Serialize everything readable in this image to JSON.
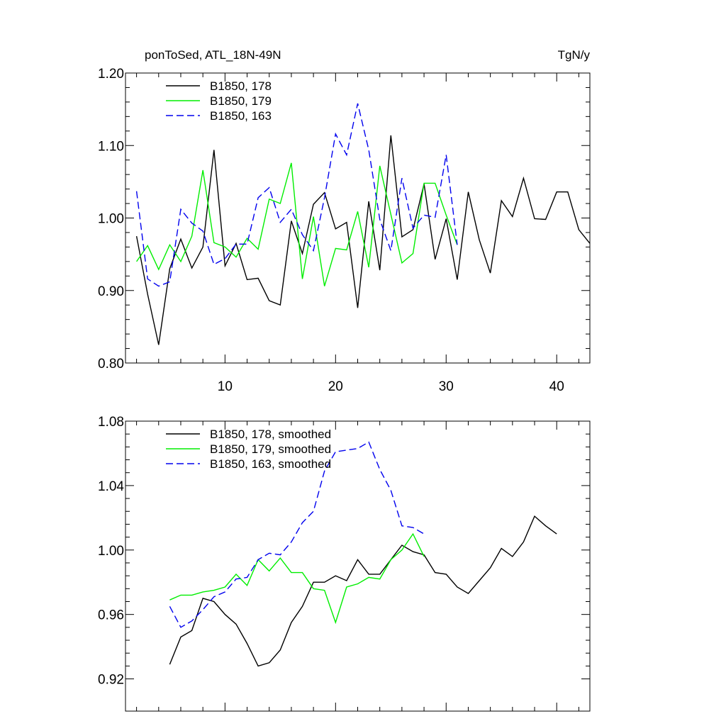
{
  "header": {
    "left_title": "ponToSed, ATL_18N-49N",
    "right_title": "TgN/y"
  },
  "chart_data": [
    {
      "type": "line",
      "title": "ponToSed, ATL_18N-49N",
      "units": "TgN/y",
      "xlim": [
        1,
        43
      ],
      "ylim": [
        0.8,
        1.2
      ],
      "xticks": [
        10,
        20,
        30,
        40
      ],
      "yticks": [
        0.8,
        0.9,
        1.0,
        1.1,
        1.2
      ],
      "ytick_labels": [
        "0.80",
        "0.90",
        "1.00",
        "1.10",
        "1.20"
      ],
      "grid": false,
      "legend_position": "top-left",
      "series": [
        {
          "name": "B1850, 178",
          "color": "#000000",
          "dash": "solid",
          "x": [
            2,
            3,
            4,
            5,
            6,
            7,
            8,
            9,
            10,
            11,
            12,
            13,
            14,
            15,
            16,
            17,
            18,
            19,
            20,
            21,
            22,
            23,
            24,
            25,
            26,
            27,
            28,
            29,
            30,
            31,
            32,
            33,
            34,
            35,
            36,
            37,
            38,
            39,
            40,
            41,
            42,
            43
          ],
          "y": [
            0.975,
            0.895,
            0.825,
            0.93,
            0.971,
            0.931,
            0.96,
            1.094,
            0.934,
            0.965,
            0.915,
            0.917,
            0.886,
            0.88,
            0.996,
            0.951,
            1.019,
            1.035,
            0.985,
            0.994,
            0.876,
            1.023,
            0.928,
            1.114,
            0.974,
            0.984,
            1.047,
            0.943,
            0.999,
            0.915,
            1.036,
            0.97,
            0.924,
            1.024,
            1.002,
            1.055,
            0.999,
            0.998,
            1.036,
            1.036,
            0.984,
            0.965
          ]
        },
        {
          "name": "B1850, 179",
          "color": "#00ee00",
          "dash": "solid",
          "x": [
            2,
            3,
            4,
            5,
            6,
            7,
            8,
            9,
            10,
            11,
            12,
            13,
            14,
            15,
            16,
            17,
            18,
            19,
            20,
            21,
            22,
            23,
            24,
            25,
            26,
            27,
            28,
            29,
            30,
            31
          ],
          "y": [
            0.94,
            0.962,
            0.929,
            0.963,
            0.94,
            0.975,
            1.066,
            0.966,
            0.96,
            0.946,
            0.972,
            0.957,
            1.026,
            1.02,
            1.076,
            0.916,
            1.002,
            0.906,
            0.958,
            0.956,
            1.009,
            0.932,
            1.072,
            1.005,
            0.938,
            0.951,
            1.048,
            1.048,
            1.004,
            0.963
          ]
        },
        {
          "name": "B1850, 163",
          "color": "#0000ee",
          "dash": "dashed",
          "x": [
            2,
            3,
            4,
            5,
            6,
            7,
            8,
            9,
            10,
            11,
            12,
            13,
            14,
            15,
            16,
            17,
            18,
            19,
            20,
            21,
            22,
            23,
            24,
            25,
            26,
            27,
            28,
            29,
            30,
            31
          ],
          "y": [
            1.037,
            0.916,
            0.906,
            0.912,
            1.012,
            0.993,
            0.982,
            0.936,
            0.944,
            0.964,
            0.964,
            1.028,
            1.042,
            0.994,
            1.012,
            0.977,
            0.955,
            1.028,
            1.116,
            1.087,
            1.158,
            1.094,
            0.998,
            0.955,
            1.055,
            0.986,
            1.004,
            1.001,
            1.087,
            0.963
          ]
        }
      ]
    },
    {
      "type": "line",
      "xlim": [
        1,
        43
      ],
      "ylim": [
        0.9,
        1.08
      ],
      "xticks": [
        10,
        20,
        30,
        40
      ],
      "yticks": [
        0.92,
        0.96,
        1.0,
        1.04,
        1.08
      ],
      "ytick_labels": [
        "0.92",
        "0.96",
        "1.00",
        "1.04",
        "1.08"
      ],
      "grid": false,
      "legend_position": "top-left",
      "series": [
        {
          "name": "B1850, 178, smoothed",
          "color": "#000000",
          "dash": "solid",
          "x": [
            5,
            6,
            7,
            8,
            9,
            10,
            11,
            12,
            13,
            14,
            15,
            16,
            17,
            18,
            19,
            20,
            21,
            22,
            23,
            24,
            25,
            26,
            27,
            28,
            29,
            30,
            31,
            32,
            33,
            34,
            35,
            36,
            37,
            38,
            39,
            40
          ],
          "y": [
            0.929,
            0.946,
            0.95,
            0.97,
            0.968,
            0.96,
            0.954,
            0.942,
            0.928,
            0.93,
            0.938,
            0.955,
            0.965,
            0.98,
            0.98,
            0.984,
            0.981,
            0.994,
            0.985,
            0.985,
            0.994,
            1.003,
            0.999,
            0.997,
            0.986,
            0.985,
            0.977,
            0.973,
            0.981,
            0.989,
            1.001,
            0.996,
            1.005,
            1.021,
            1.015,
            1.01
          ]
        },
        {
          "name": "B1850, 179, smoothed",
          "color": "#00ee00",
          "dash": "solid",
          "x": [
            5,
            6,
            7,
            8,
            9,
            10,
            11,
            12,
            13,
            14,
            15,
            16,
            17,
            18,
            19,
            20,
            21,
            22,
            23,
            24,
            25,
            26,
            27,
            28
          ],
          "y": [
            0.969,
            0.972,
            0.972,
            0.974,
            0.975,
            0.977,
            0.985,
            0.978,
            0.994,
            0.987,
            0.995,
            0.986,
            0.986,
            0.976,
            0.975,
            0.955,
            0.977,
            0.979,
            0.983,
            0.982,
            0.994,
            1.0,
            1.01,
            0.996
          ]
        },
        {
          "name": "B1850, 163, smoothed",
          "color": "#0000ee",
          "dash": "dashed",
          "x": [
            5,
            6,
            7,
            8,
            9,
            10,
            11,
            12,
            13,
            14,
            15,
            16,
            17,
            18,
            19,
            20,
            21,
            22,
            23,
            24,
            25,
            26,
            27,
            28
          ],
          "y": [
            0.965,
            0.952,
            0.956,
            0.963,
            0.971,
            0.974,
            0.982,
            0.983,
            0.994,
            0.998,
            0.997,
            1.005,
            1.017,
            1.024,
            1.049,
            1.061,
            1.062,
            1.063,
            1.067,
            1.05,
            1.037,
            1.015,
            1.014,
            1.01
          ]
        }
      ]
    }
  ]
}
